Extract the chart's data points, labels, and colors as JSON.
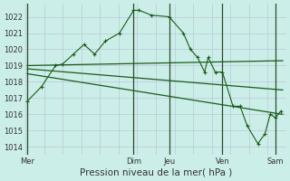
{
  "background_color": "#cceee8",
  "grid_color": "#b8c8d8",
  "line_color": "#1a5c1a",
  "day_line_color": "#2a4a2a",
  "fig_width": 3.2,
  "fig_height": 2.0,
  "dpi": 100,
  "ylim": [
    1013.5,
    1022.8
  ],
  "yticks": [
    1014,
    1015,
    1016,
    1017,
    1018,
    1019,
    1020,
    1021,
    1022
  ],
  "xlabel": "Pression niveau de la mer( hPa )",
  "xlabel_fontsize": 7.5,
  "tick_fontsize": 6.0,
  "xtick_labels": [
    "Mer",
    "",
    "Dim",
    "Jeu",
    "",
    "Ven",
    "",
    "Sam"
  ],
  "day_labels": [
    "Mer",
    "Dim",
    "Jeu",
    "Ven",
    "Sam"
  ],
  "day_positions": [
    0,
    3,
    4,
    5.5,
    7
  ],
  "num_grid_cols": 14,
  "xlim": [
    -0.05,
    7.3
  ],
  "main_line_x": [
    0,
    0.4,
    0.8,
    1.0,
    1.3,
    1.6,
    1.9,
    2.2,
    2.6,
    3.0,
    3.15,
    3.5,
    4.0,
    4.4,
    4.6,
    4.8,
    5.0,
    5.1,
    5.3,
    5.5,
    5.8,
    6.0,
    6.2,
    6.5,
    6.7,
    6.85,
    7.0,
    7.15
  ],
  "main_line_y": [
    1016.8,
    1017.7,
    1019.0,
    1019.1,
    1019.7,
    1020.3,
    1019.7,
    1020.5,
    1021.0,
    1022.4,
    1022.4,
    1022.1,
    1022.0,
    1021.0,
    1020.0,
    1019.5,
    1018.6,
    1019.5,
    1018.6,
    1018.6,
    1016.5,
    1016.5,
    1015.3,
    1014.2,
    1014.8,
    1016.0,
    1015.8,
    1016.2
  ],
  "trend1_x": [
    0,
    7.2
  ],
  "trend1_y": [
    1019.0,
    1019.3
  ],
  "trend2_x": [
    0,
    7.2
  ],
  "trend2_y": [
    1018.8,
    1017.5
  ],
  "trend3_x": [
    0,
    7.2
  ],
  "trend3_y": [
    1018.5,
    1016.0
  ],
  "vlines_x": [
    0,
    3.0,
    4.0,
    5.5,
    7.0
  ],
  "marker_style": "+",
  "marker_size": 3.5
}
